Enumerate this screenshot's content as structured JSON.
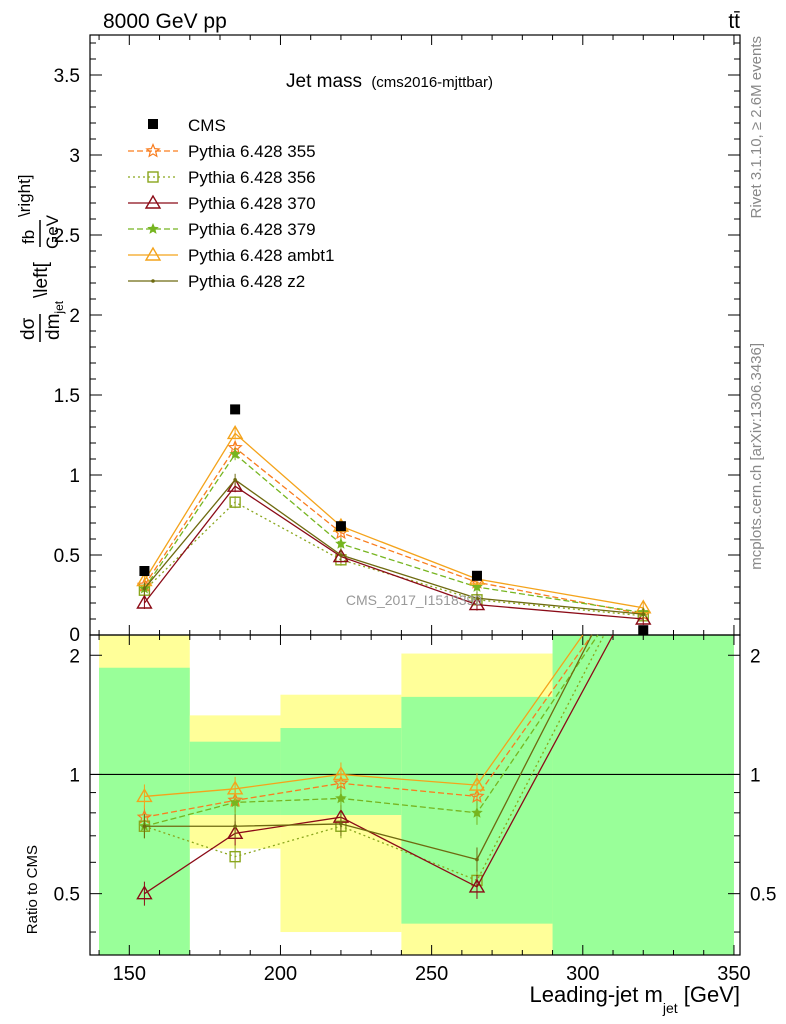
{
  "header": {
    "energy_label": "8000 GeV pp",
    "process_label": "tt̄",
    "rivet_label": "Rivet 3.1.10, ≥ 2.6M events",
    "mcplots_label": "mcplots.cern.ch [arXiv:1306.3436]",
    "watermark": "CMS_2017_I1518399"
  },
  "chart_data": [
    {
      "type": "scatter",
      "title": "Jet mass",
      "subtitle": "(cms2016-mjttbar)",
      "ylabel": "dσ/dm_jet \\left[fb/GeV\\right]",
      "xlabel": "Leading-jet m_jet [GeV]",
      "xlim": [
        137,
        352
      ],
      "ylim": [
        0,
        3.75
      ],
      "x_ticks": [
        150,
        200,
        250,
        300,
        350
      ],
      "y_ticks": [
        0.5,
        1,
        1.5,
        2,
        2.5,
        3,
        3.5
      ],
      "y_tick_labels": [
        "0.5",
        "1",
        "1.5",
        "2",
        "2.5",
        "3",
        "3.5"
      ],
      "y_zero_label": "0",
      "x": [
        155,
        185,
        220,
        265,
        320
      ],
      "data": {
        "name": "CMS",
        "values": [
          0.4,
          1.41,
          0.68,
          0.37,
          0.03
        ]
      },
      "series": [
        {
          "name": "Pythia 6.428 355",
          "color": "#f97d1f",
          "dash": "6,3",
          "marker": "star",
          "values": [
            0.31,
            1.17,
            0.64,
            0.33,
            0.13
          ]
        },
        {
          "name": "Pythia 6.428 356",
          "color": "#8aa61d",
          "dash": "2,3",
          "marker": "square-open",
          "values": [
            0.28,
            0.83,
            0.47,
            0.22,
            0.12
          ]
        },
        {
          "name": "Pythia 6.428 370",
          "color": "#8b0b17",
          "dash": "",
          "marker": "triangle-open",
          "values": [
            0.2,
            0.93,
            0.49,
            0.19,
            0.1
          ]
        },
        {
          "name": "Pythia 6.428 379",
          "color": "#76b520",
          "dash": "6,3",
          "marker": "star-small",
          "values": [
            0.29,
            1.13,
            0.57,
            0.3,
            0.14
          ]
        },
        {
          "name": "Pythia 6.428 ambt1",
          "color": "#f4a31b",
          "dash": "",
          "marker": "triangle-open",
          "values": [
            0.34,
            1.26,
            0.68,
            0.35,
            0.17
          ]
        },
        {
          "name": "Pythia 6.428 z2",
          "color": "#6e6a10",
          "dash": "",
          "marker": "dot",
          "values": [
            0.29,
            0.97,
            0.5,
            0.23,
            0.13
          ]
        }
      ]
    },
    {
      "type": "line",
      "ylabel": "Ratio to CMS",
      "ylim": [
        0.35,
        2.25
      ],
      "y_ticks": [
        0.5,
        1,
        2
      ],
      "y_tick_labels": [
        "0.5",
        "1",
        "2"
      ],
      "bins": [
        {
          "lo": 140,
          "hi": 170,
          "green": [
            0.35,
            1.86
          ],
          "yellow": [
            0.35,
            2.25
          ]
        },
        {
          "lo": 170,
          "hi": 240,
          "green": [
            0.79,
            1.21
          ],
          "yellow": [
            0.62,
            1.41
          ]
        },
        {
          "lo": 240,
          "hi": 290,
          "green": [
            0.42,
            1.57
          ],
          "yellow": [
            0.35,
            2.02
          ]
        },
        {
          "lo": 290,
          "hi": 350,
          "green": [
            0.35,
            2.25
          ],
          "yellow": [
            0.35,
            2.25
          ]
        }
      ],
      "bin_shift": [
        {
          "lo": 170,
          "hi": 200,
          "green": [
            0.79,
            1.21
          ],
          "yellow": [
            0.65,
            1.41
          ]
        },
        {
          "lo": 200,
          "hi": 240,
          "green": [
            0.79,
            1.31
          ],
          "yellow": [
            0.4,
            1.59
          ]
        }
      ],
      "x": [
        155,
        185,
        220,
        265
      ],
      "series": [
        {
          "name": "Pythia 6.428 355",
          "values": [
            0.78,
            0.86,
            0.95,
            0.88
          ],
          "end_x": 303
        },
        {
          "name": "Pythia 6.428 356",
          "values": [
            0.74,
            0.62,
            0.74,
            0.54
          ],
          "end_x": 307
        },
        {
          "name": "Pythia 6.428 370",
          "values": [
            0.5,
            0.71,
            0.78,
            0.52
          ],
          "end_x": 310
        },
        {
          "name": "Pythia 6.428 379",
          "values": [
            0.74,
            0.85,
            0.87,
            0.8
          ],
          "end_x": 305
        },
        {
          "name": "Pythia 6.428 ambt1",
          "values": [
            0.88,
            0.92,
            1.0,
            0.94
          ],
          "end_x": 300
        },
        {
          "name": "Pythia 6.428 z2",
          "values": [
            0.74,
            0.74,
            0.75,
            0.61
          ],
          "end_x": 303
        }
      ]
    }
  ]
}
